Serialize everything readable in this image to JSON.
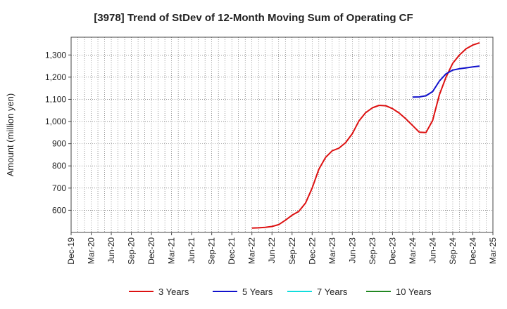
{
  "chart_data": {
    "type": "line",
    "title": "[3978]  Trend of StDev of 12-Month Moving Sum of Operating CF",
    "ylabel": "Amount (million yen)",
    "xlabel": "",
    "ylim": [
      500,
      1380
    ],
    "yticks": [
      600,
      700,
      800,
      900,
      1000,
      1100,
      1200,
      1300
    ],
    "ytick_labels": [
      "600",
      "700",
      "800",
      "900",
      "1,000",
      "1,100",
      "1,200",
      "1,300"
    ],
    "x_start": "Dec-19",
    "x_end": "Mar-25",
    "xtick_labels": [
      "Dec-19",
      "Mar-20",
      "Jun-20",
      "Sep-20",
      "Dec-20",
      "Mar-21",
      "Jun-21",
      "Sep-21",
      "Dec-21",
      "Mar-22",
      "Jun-22",
      "Sep-22",
      "Dec-22",
      "Mar-23",
      "Jun-23",
      "Sep-23",
      "Dec-23",
      "Mar-24",
      "Jun-24",
      "Sep-24",
      "Dec-24",
      "Mar-25"
    ],
    "grid": true,
    "legend_position": "bottom",
    "series": [
      {
        "name": "3 Years",
        "color": "#dd1111",
        "points": [
          [
            "Mar-22",
            520
          ],
          [
            "Apr-22",
            521
          ],
          [
            "May-22",
            523
          ],
          [
            "Jun-22",
            527
          ],
          [
            "Jul-22",
            535
          ],
          [
            "Aug-22",
            555
          ],
          [
            "Sep-22",
            578
          ],
          [
            "Oct-22",
            595
          ],
          [
            "Nov-22",
            632
          ],
          [
            "Dec-22",
            700
          ],
          [
            "Jan-23",
            785
          ],
          [
            "Feb-23",
            838
          ],
          [
            "Mar-23",
            868
          ],
          [
            "Apr-23",
            880
          ],
          [
            "May-23",
            905
          ],
          [
            "Jun-23",
            945
          ],
          [
            "Jul-23",
            1003
          ],
          [
            "Aug-23",
            1040
          ],
          [
            "Sep-23",
            1062
          ],
          [
            "Oct-23",
            1073
          ],
          [
            "Nov-23",
            1071
          ],
          [
            "Dec-23",
            1058
          ],
          [
            "Jan-24",
            1038
          ],
          [
            "Feb-24",
            1012
          ],
          [
            "Mar-24",
            982
          ],
          [
            "Apr-24",
            952
          ],
          [
            "May-24",
            950
          ],
          [
            "Jun-24",
            1005
          ],
          [
            "Jul-24",
            1120
          ],
          [
            "Aug-24",
            1200
          ],
          [
            "Sep-24",
            1263
          ],
          [
            "Oct-24",
            1300
          ],
          [
            "Nov-24",
            1328
          ],
          [
            "Dec-24",
            1345
          ],
          [
            "Jan-25",
            1355
          ]
        ]
      },
      {
        "name": "5 Years",
        "color": "#1111cc",
        "points": [
          [
            "Mar-24",
            1110
          ],
          [
            "Apr-24",
            1111
          ],
          [
            "May-24",
            1116
          ],
          [
            "Jun-24",
            1135
          ],
          [
            "Jul-24",
            1182
          ],
          [
            "Aug-24",
            1215
          ],
          [
            "Sep-24",
            1232
          ],
          [
            "Oct-24",
            1238
          ],
          [
            "Nov-24",
            1242
          ],
          [
            "Dec-24",
            1246
          ],
          [
            "Jan-25",
            1250
          ]
        ]
      },
      {
        "name": "7 Years",
        "color": "#11dddd",
        "points": []
      },
      {
        "name": "10 Years",
        "color": "#228822",
        "points": []
      }
    ]
  }
}
